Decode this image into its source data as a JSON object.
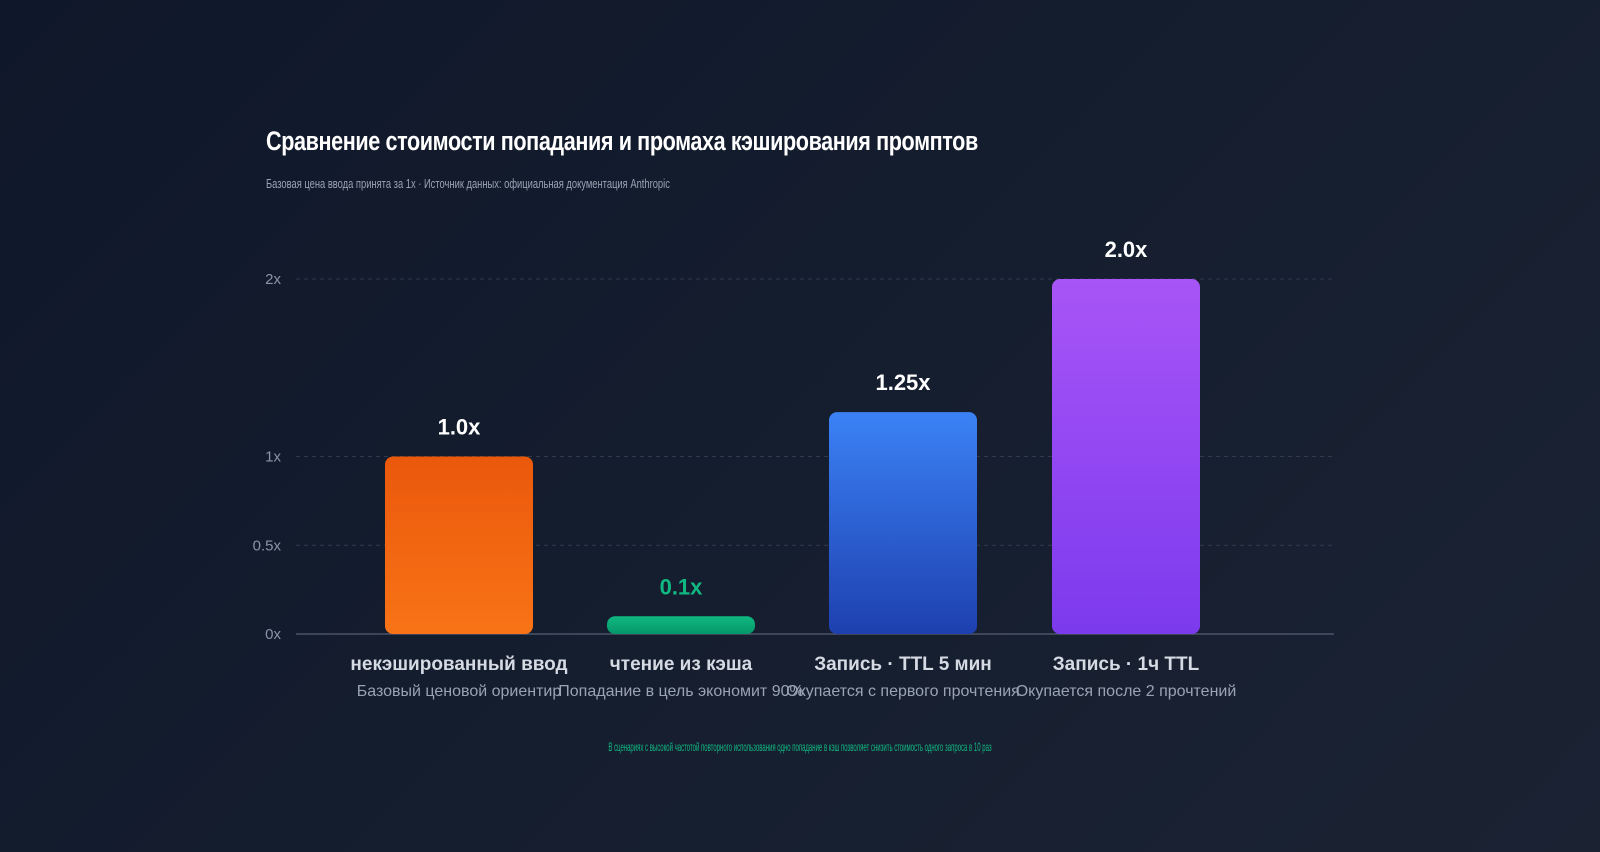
{
  "chart_data": {
    "type": "bar",
    "title": "Сравнение стоимости попадания и промаха кэширования промптов",
    "subtitle": "Базовая цена ввода принята за 1x · Источник данных: официальная документация Anthropic",
    "categories": [
      "некэшированный ввод",
      "чтение из кэша",
      "Запись · TTL 5 мин",
      "Запись · 1ч TTL"
    ],
    "notes": [
      "Базовый ценовой ориентир",
      "Попадание в цель экономит 90%",
      "Окупается с первого прочтения",
      "Окупается после 2 прочтений"
    ],
    "values": [
      1.0,
      0.1,
      1.25,
      2.0
    ],
    "value_labels": [
      "1.0x",
      "0.1x",
      "1.25x",
      "2.0x"
    ],
    "ylim": [
      0,
      2
    ],
    "yticks": [
      0,
      0.5,
      1,
      2
    ],
    "ytick_labels": [
      "0x",
      "0.5x",
      "1x",
      "2x"
    ],
    "grid": true,
    "colors": [
      {
        "top": "#ea580c",
        "bottom": "#f97316",
        "label": "#ffffff"
      },
      {
        "top": "#10b981",
        "bottom": "#059669",
        "label": "#10b981"
      },
      {
        "top": "#3b82f6",
        "bottom": "#1e40af",
        "label": "#ffffff"
      },
      {
        "top": "#a855f7",
        "bottom": "#7c3aed",
        "label": "#ffffff"
      }
    ],
    "footnote": "В сценариях с высокой частотой повторного использования одно попадание в кэш позволяет снизить стоимость одного запроса в 10 раз"
  }
}
